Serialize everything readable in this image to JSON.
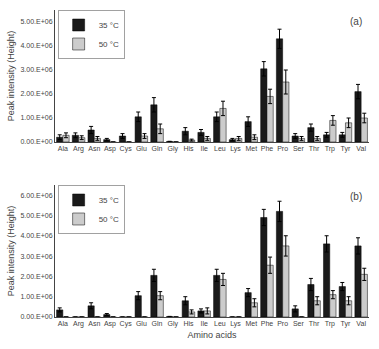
{
  "chart_data": [
    {
      "type": "bar",
      "categories": [
        "Ala",
        "Arg",
        "Asn",
        "Asp",
        "Cys",
        "Glu",
        "Gln",
        "Gly",
        "His",
        "Ile",
        "Leu",
        "Lys",
        "Met",
        "Phe",
        "Pro",
        "Ser",
        "Thr",
        "Trp",
        "Tyr",
        "Val"
      ],
      "series": [
        {
          "name": "35 °C",
          "color": "#1a1a1a",
          "values": [
            200000,
            280000,
            500000,
            100000,
            250000,
            1050000,
            1550000,
            20000,
            450000,
            400000,
            1050000,
            100000,
            850000,
            3050000,
            4300000,
            250000,
            600000,
            300000,
            300000,
            2100000
          ],
          "errors": [
            100000,
            100000,
            150000,
            50000,
            100000,
            200000,
            300000,
            10000,
            150000,
            120000,
            200000,
            50000,
            200000,
            300000,
            400000,
            100000,
            150000,
            100000,
            100000,
            300000
          ]
        },
        {
          "name": "50 °C",
          "color": "#cccccc",
          "values": [
            280000,
            180000,
            150000,
            0,
            0,
            250000,
            550000,
            0,
            80000,
            150000,
            1400000,
            150000,
            200000,
            1900000,
            2500000,
            150000,
            150000,
            900000,
            800000,
            1000000
          ],
          "errors": [
            100000,
            80000,
            80000,
            0,
            0,
            100000,
            200000,
            0,
            40000,
            80000,
            300000,
            80000,
            100000,
            300000,
            500000,
            80000,
            80000,
            200000,
            200000,
            200000
          ]
        }
      ],
      "ylabel": "Peak intensity (Height)",
      "ylim": [
        0,
        5500000
      ],
      "yticks": [
        {
          "value": 0,
          "label": "0.00.E+00"
        },
        {
          "value": 1000000,
          "label": "1.00.E+06"
        },
        {
          "value": 2000000,
          "label": "2.00.E+06"
        },
        {
          "value": 3000000,
          "label": "3.00.E+06"
        },
        {
          "value": 4000000,
          "label": "4.00.E+06"
        },
        {
          "value": 5000000,
          "label": "5.00.E+06"
        }
      ],
      "legend": "upper left",
      "grid": false,
      "annotations": [
        "(a)"
      ]
    },
    {
      "type": "bar",
      "categories": [
        "Ala",
        "Arg",
        "Asn",
        "Asp",
        "Cys",
        "Glu",
        "Gln",
        "Gly",
        "His",
        "Ile",
        "Leu",
        "Lys",
        "Met",
        "Phe",
        "Pro",
        "Ser",
        "Thr",
        "Trp",
        "Tyr",
        "Val"
      ],
      "series": [
        {
          "name": "35 °C",
          "color": "#1a1a1a",
          "values": [
            350000,
            0,
            550000,
            120000,
            0,
            1050000,
            2050000,
            20000,
            800000,
            300000,
            2050000,
            0,
            1200000,
            4900000,
            5200000,
            400000,
            1600000,
            3600000,
            1500000,
            3500000
          ],
          "errors": [
            100000,
            0,
            150000,
            50000,
            0,
            200000,
            300000,
            10000,
            200000,
            100000,
            300000,
            0,
            200000,
            400000,
            500000,
            150000,
            300000,
            400000,
            200000,
            400000
          ]
        },
        {
          "name": "50 °C",
          "color": "#cccccc",
          "values": [
            0,
            0,
            0,
            0,
            0,
            0,
            1050000,
            0,
            250000,
            300000,
            1850000,
            0,
            700000,
            2550000,
            3500000,
            0,
            800000,
            1100000,
            800000,
            2100000
          ],
          "errors": [
            0,
            0,
            0,
            0,
            0,
            0,
            200000,
            0,
            100000,
            150000,
            300000,
            0,
            200000,
            400000,
            500000,
            0,
            200000,
            200000,
            200000,
            300000
          ]
        }
      ],
      "xlabel": "Amino acids",
      "ylabel": "Peak intensity (Height)",
      "ylim": [
        0,
        6500000
      ],
      "yticks": [
        {
          "value": 0,
          "label": "0.00.E+00"
        },
        {
          "value": 1000000,
          "label": "1.00.E+06"
        },
        {
          "value": 2000000,
          "label": "2.00.E+06"
        },
        {
          "value": 3000000,
          "label": "3.00.E+06"
        },
        {
          "value": 4000000,
          "label": "4.00.E+06"
        },
        {
          "value": 5000000,
          "label": "5.00.E+06"
        },
        {
          "value": 6000000,
          "label": "6.00.E+06"
        }
      ],
      "legend": "upper left",
      "grid": false,
      "annotations": [
        "(b)"
      ]
    }
  ]
}
